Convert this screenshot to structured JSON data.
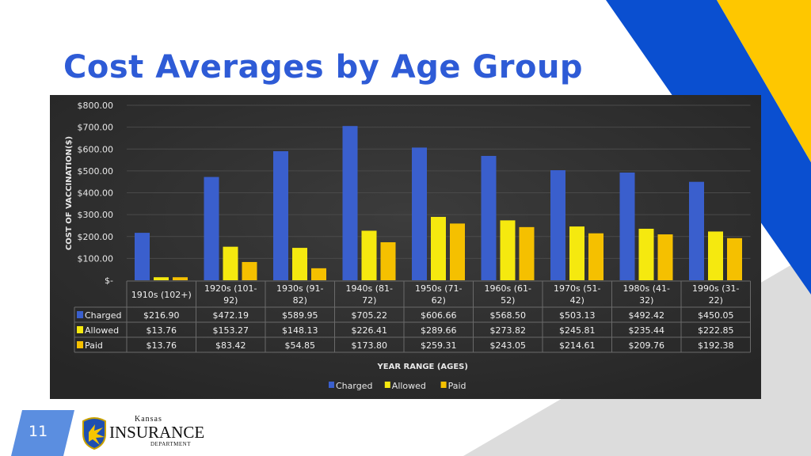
{
  "slide": {
    "title": "Cost Averages by Age Group",
    "page_number": "11"
  },
  "logo": {
    "line1": "Kansas",
    "line2": "Insurance",
    "line3": "Department"
  },
  "colors": {
    "title": "#2e5bd6",
    "charged": "#3a5fcd",
    "allowed": "#f5e90f",
    "paid": "#f5c000",
    "chart_bg": "#2f2f2f",
    "accent_blue": "#0a4fd0",
    "accent_yellow": "#fec700"
  },
  "chart_data": {
    "type": "bar",
    "title": "",
    "xlabel": "YEAR RANGE (AGES)",
    "ylabel": "COST OF VACCINATION($)",
    "ylim": [
      0,
      800
    ],
    "yticks": [
      "$-",
      "$100.00",
      "$200.00",
      "$300.00",
      "$400.00",
      "$500.00",
      "$600.00",
      "$700.00",
      "$800.00"
    ],
    "grid": true,
    "legend": "bottom",
    "categories": [
      "1910s (102+)",
      "1920s (101-92)",
      "1930s (91-82)",
      "1940s (81-72)",
      "1950s (71-62)",
      "1960s (61-52)",
      "1970s (51-42)",
      "1980s (41-32)",
      "1990s (31-22)"
    ],
    "series": [
      {
        "name": "Charged",
        "values": [
          216.9,
          472.19,
          589.95,
          705.22,
          606.66,
          568.5,
          503.13,
          492.42,
          450.05
        ],
        "labels": [
          "$216.90",
          "$472.19",
          "$589.95",
          "$705.22",
          "$606.66",
          "$568.50",
          "$503.13",
          "$492.42",
          "$450.05"
        ]
      },
      {
        "name": "Allowed",
        "values": [
          13.76,
          153.27,
          148.13,
          226.41,
          289.66,
          273.82,
          245.81,
          235.44,
          222.85
        ],
        "labels": [
          "$13.76",
          "$153.27",
          "$148.13",
          "$226.41",
          "$289.66",
          "$273.82",
          "$245.81",
          "$235.44",
          "$222.85"
        ]
      },
      {
        "name": "Paid",
        "values": [
          13.76,
          83.42,
          54.85,
          173.8,
          259.31,
          243.05,
          214.61,
          209.76,
          192.38
        ],
        "labels": [
          "$13.76",
          "$83.42",
          "$54.85",
          "$173.80",
          "$259.31",
          "$243.05",
          "$214.61",
          "$209.76",
          "$192.38"
        ]
      }
    ]
  }
}
